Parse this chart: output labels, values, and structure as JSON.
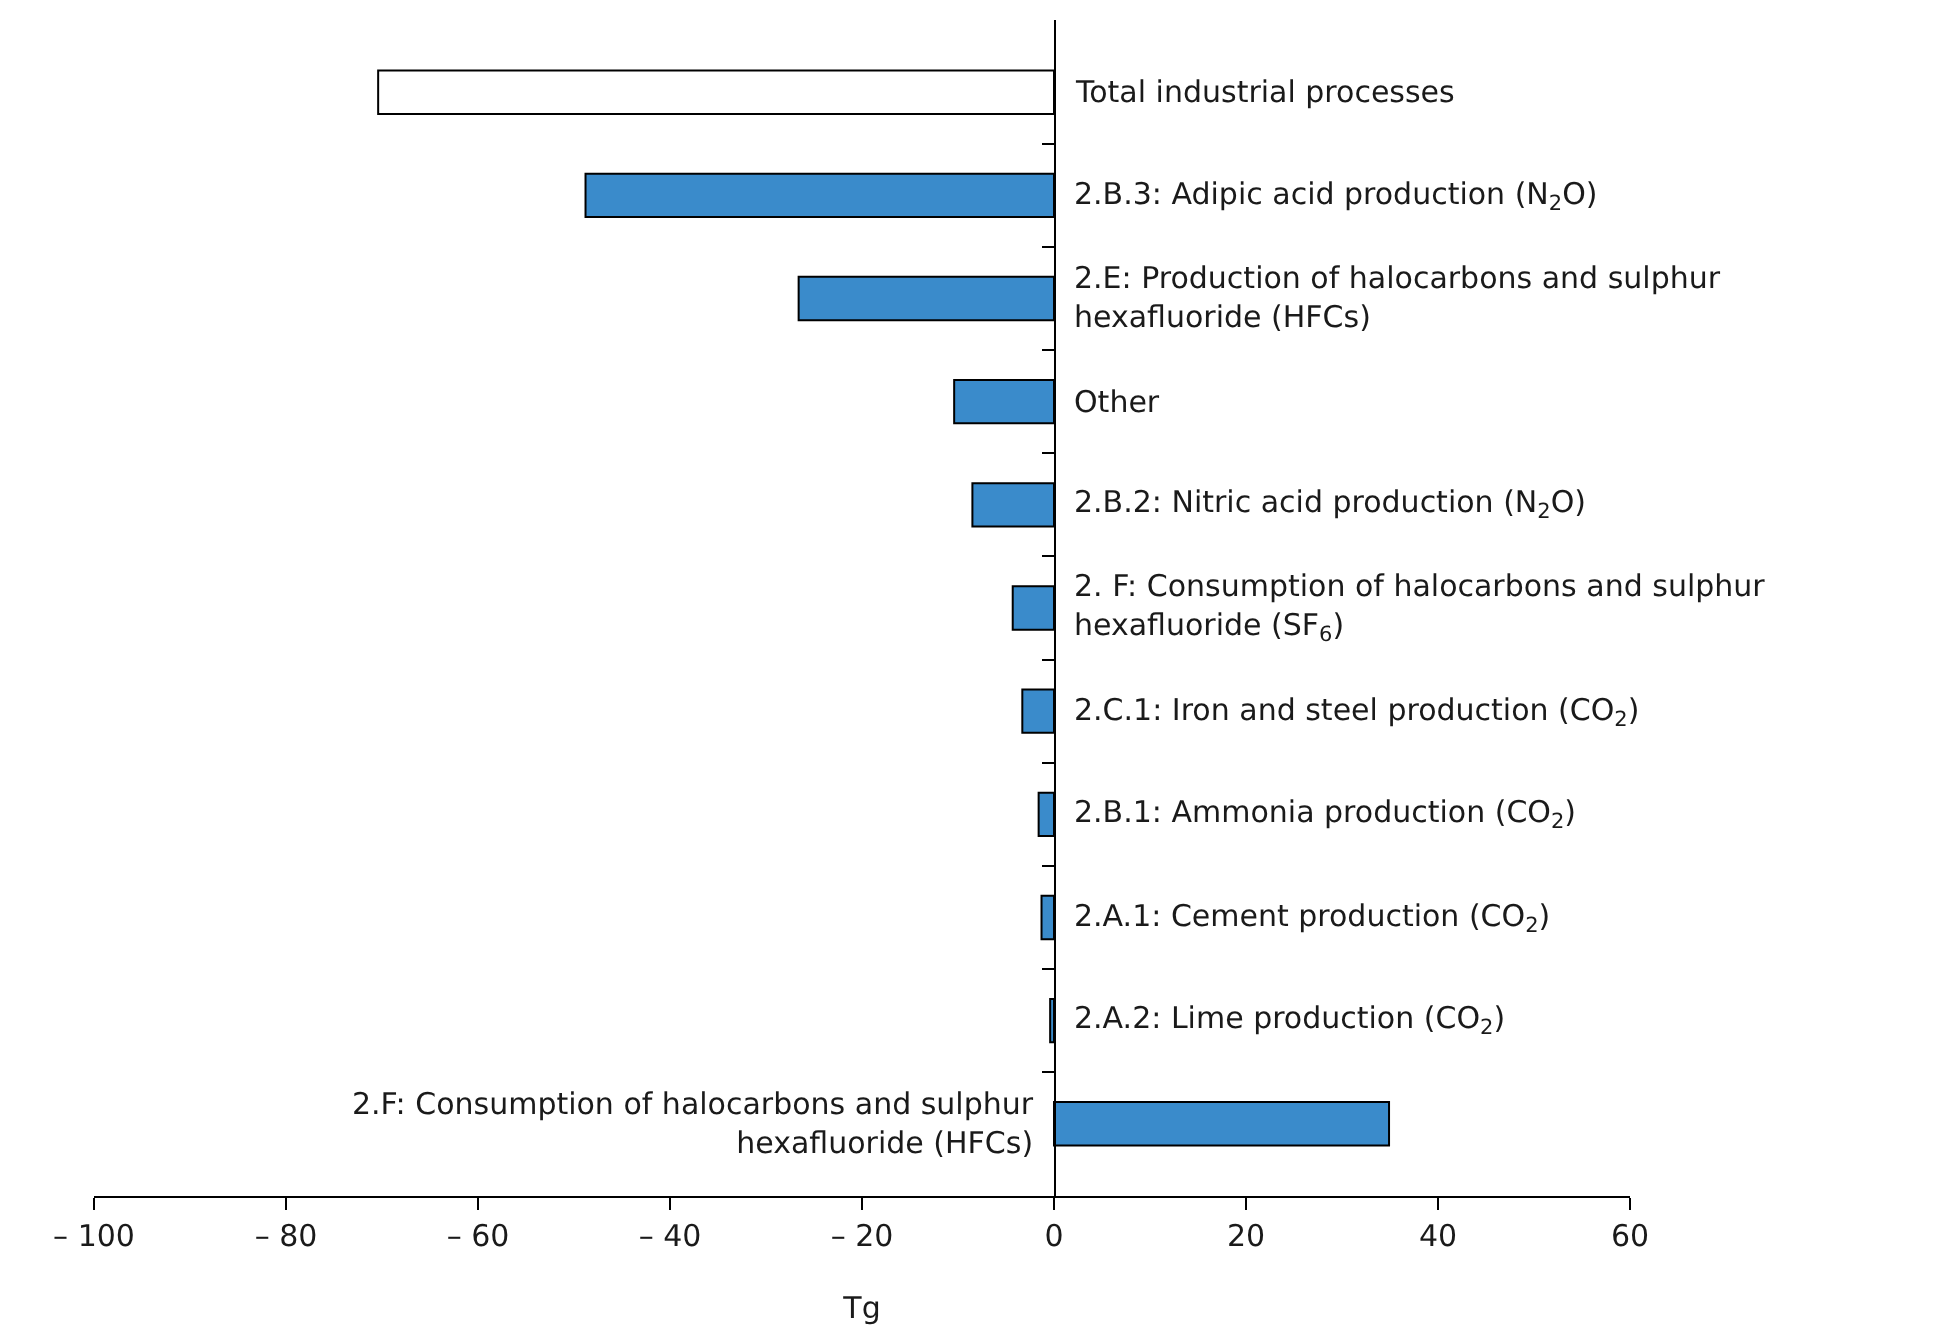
{
  "chart_data": {
    "type": "bar",
    "orientation": "horizontal",
    "xlabel": "Tg",
    "categories": [
      "Total industrial processes",
      "2.B.3: Adipic acid production (N$_{2}$O)",
      "2.E: Production of halocarbons and sulphur hexafluoride (HFCs)",
      "Other",
      "2.B.2: Nitric acid production (N$_{2}$O)",
      "2. F: Consumption of halocarbons and sulphur hexafluoride (SF$_{6}$)",
      "2.C.1: Iron and steel production (CO$_{2}$)",
      "2.B.1: Ammonia production (CO$_{2}$)",
      "2.A.1: Cement production (CO$_{2}$)",
      "2.A.2: Lime production (CO$_{2}$)",
      "2.F: Consumption of halocarbons and sulphur hexafluoride (HFCs)"
    ],
    "values": [
      -70.4,
      -48.8,
      -26.6,
      -10.4,
      -8.5,
      -4.3,
      -3.3,
      -1.6,
      -1.3,
      -0.4,
      34.9
    ],
    "colors": [
      "#ffffff",
      "#3a8bcb",
      "#3a8bcb",
      "#3a8bcb",
      "#3a8bcb",
      "#3a8bcb",
      "#3a8bcb",
      "#3a8bcb",
      "#3a8bcb",
      "#3a8bcb",
      "#3a8bcb"
    ],
    "xlim": [
      -100,
      60
    ],
    "xticks": [
      {
        "value": -100,
        "label": "– 100"
      },
      {
        "value": -80,
        "label": "– 80"
      },
      {
        "value": -60,
        "label": "– 60"
      },
      {
        "value": -40,
        "label": "– 40"
      },
      {
        "value": -20,
        "label": "– 20"
      },
      0,
      20,
      40,
      60
    ]
  }
}
